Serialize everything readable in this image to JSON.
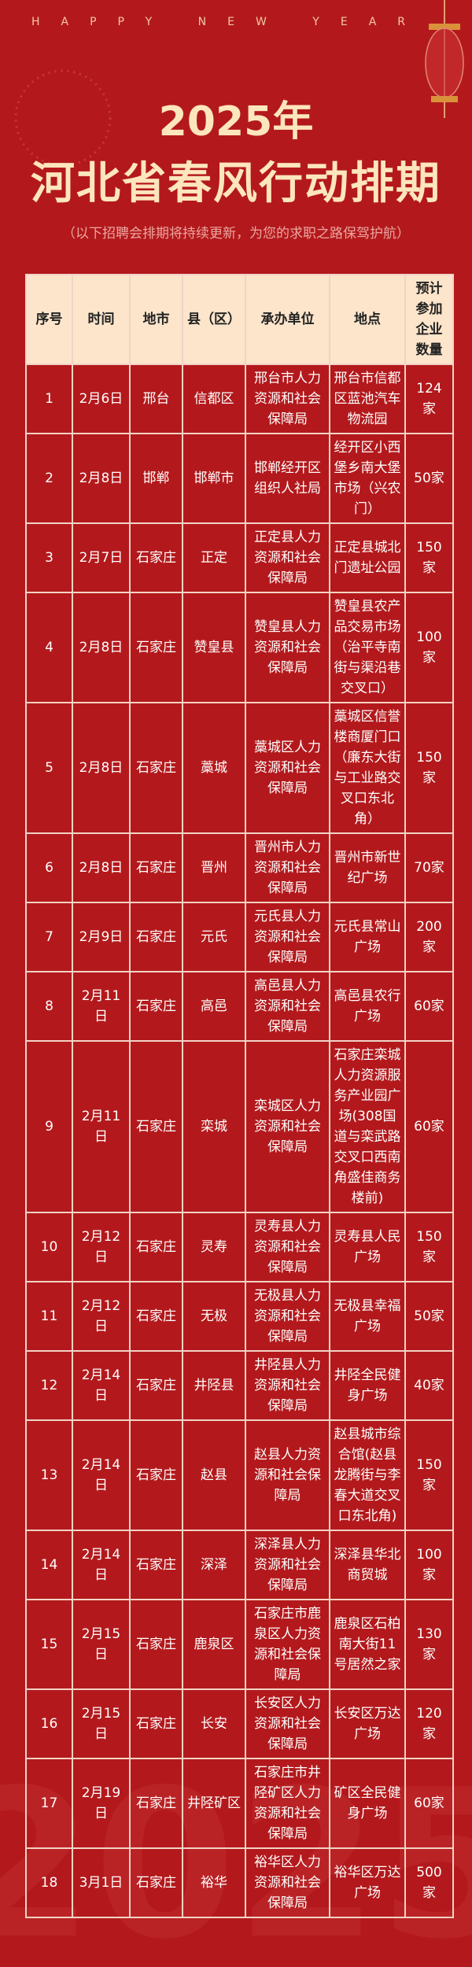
{
  "header": {
    "greeting": "HAPPY NEW YEAR",
    "title_line1": "2025年",
    "title_line2": "河北省春风行动排期",
    "subtitle": "（以下招聘会排期将持续更新，为您的求职之路保驾护航）"
  },
  "table": {
    "columns": [
      "序号",
      "时间",
      "地市",
      "县（区）",
      "承办单位",
      "地点",
      "预计参加企业数量"
    ],
    "rows": [
      [
        "1",
        "2月6日",
        "邢台",
        "信都区",
        "邢台市人力资源和社会保障局",
        "邢台市信都区蓝池汽车物流园",
        "124家"
      ],
      [
        "2",
        "2月8日",
        "邯郸",
        "邯郸市",
        "邯郸经开区组织人社局",
        "经开区小西堡乡南大堡市场（兴农门）",
        "50家"
      ],
      [
        "3",
        "2月7日",
        "石家庄",
        "正定",
        "正定县人力资源和社会保障局",
        "正定县城北门遗址公园",
        "150家"
      ],
      [
        "4",
        "2月8日",
        "石家庄",
        "赞皇县",
        "赞皇县人力资源和社会保障局",
        "赞皇县农产品交易市场（治平寺南街与渠沿巷交叉口）",
        "100家"
      ],
      [
        "5",
        "2月8日",
        "石家庄",
        "藁城",
        "藁城区人力资源和社会保障局",
        "藁城区信誉楼商厦门口（廉东大街与工业路交叉口东北角）",
        "150家"
      ],
      [
        "6",
        "2月8日",
        "石家庄",
        "晋州",
        "晋州市人力资源和社会保障局",
        "晋州市新世纪广场",
        "70家"
      ],
      [
        "7",
        "2月9日",
        "石家庄",
        "元氏",
        "元氏县人力资源和社会保障局",
        "元氏县常山广场",
        "200家"
      ],
      [
        "8",
        "2月11日",
        "石家庄",
        "高邑",
        "高邑县人力资源和社会保障局",
        "高邑县农行广场",
        "60家"
      ],
      [
        "9",
        "2月11日",
        "石家庄",
        "栾城",
        "栾城区人力资源和社会保障局",
        "石家庄栾城人力资源服务产业园广场(308国道与栾武路交叉口西南角盛佳商务楼前)",
        "60家"
      ],
      [
        "10",
        "2月12日",
        "石家庄",
        "灵寿",
        "灵寿县人力资源和社会保障局",
        "灵寿县人民广场",
        "150家"
      ],
      [
        "11",
        "2月12日",
        "石家庄",
        "无极",
        "无极县人力资源和社会保障局",
        "无极县幸福广场",
        "50家"
      ],
      [
        "12",
        "2月14日",
        "石家庄",
        "井陉县",
        "井陉县人力资源和社会保障局",
        "井陉全民健身广场",
        "40家"
      ],
      [
        "13",
        "2月14日",
        "石家庄",
        "赵县",
        "赵县人力资源和社会保障局",
        "赵县城市综合馆(赵县龙腾街与李春大道交叉口东北角)",
        "150家"
      ],
      [
        "14",
        "2月14日",
        "石家庄",
        "深泽",
        "深泽县人力资源和社会保障局",
        "深泽县华北商贸城",
        "100家"
      ],
      [
        "15",
        "2月15日",
        "石家庄",
        "鹿泉区",
        "石家庄市鹿泉区人力资源和社会保障局",
        "鹿泉区石柏南大街11号居然之家",
        "130家"
      ],
      [
        "16",
        "2月15日",
        "石家庄",
        "长安",
        "长安区人力资源和社会保障局",
        "长安区万达广场",
        "120家"
      ],
      [
        "17",
        "2月19日",
        "石家庄",
        "井陉矿区",
        "石家庄市井陉矿区人力资源和社会保障局",
        "矿区全民健身广场",
        "60家"
      ],
      [
        "18",
        "3月1日",
        "石家庄",
        "裕华",
        "裕华区人力资源和社会保障局",
        "裕华区万达广场",
        "500家"
      ]
    ]
  }
}
